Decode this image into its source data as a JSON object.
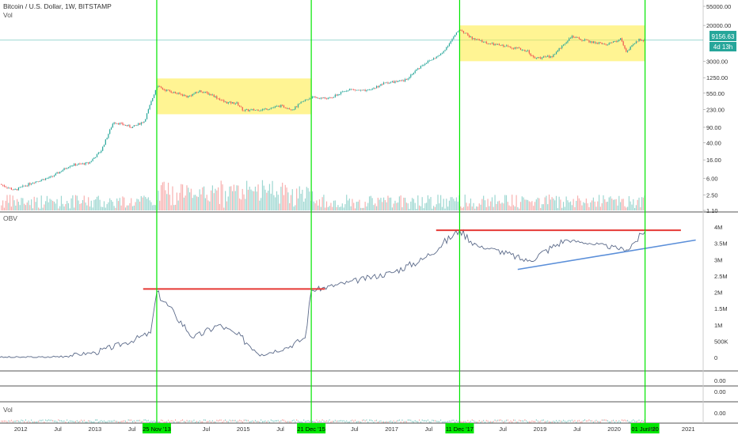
{
  "header": {
    "symbol": "Bitcoin / U.S. Dollar, 1W, BITSTAMP",
    "vol_label": "Vol"
  },
  "obv_label": "OBV",
  "bottom_vol_label": "Vol",
  "price_axis_labels": [
    "55000.00",
    "20000.00",
    "3000.00",
    "1250.00",
    "550.00",
    "230.00",
    "90.00",
    "40.00",
    "16.00",
    "6.00",
    "2.50",
    "1.10"
  ],
  "price_badge": {
    "value": "9156.63",
    "countdown": "4d 13h",
    "color": "#26a69a"
  },
  "obv_axis_labels": [
    "4M",
    "3.5M",
    "3M",
    "2.5M",
    "2M",
    "1.5M",
    "1M",
    "500K",
    "0"
  ],
  "small_pane_labels": [
    "0.00",
    "0.00"
  ],
  "vol_pane_label": "0.00",
  "time_axis": [
    "2012",
    "Jul",
    "2013",
    "Jul",
    "Jul",
    "2015",
    "Jul",
    "Jul",
    "2017",
    "Jul",
    "Jul",
    "2019",
    "Jul",
    "2020",
    "Jul",
    "2021"
  ],
  "vertical_line_tags": [
    "25 Nov '13",
    "21 Dec '15",
    "11 Dec '17",
    "01 Jun '20"
  ],
  "colors": {
    "up": "#26a69a",
    "down": "#ef5350",
    "vertical_line": "#00e600",
    "highlight": "#ffeb3b",
    "resistance": "#e53935",
    "trendline": "#5b8fd9",
    "obv": "#5c6b8a",
    "tag_bg": "#00e600"
  },
  "chart_data": {
    "type": "line",
    "price_scale": "log",
    "price_ylim": [
      1.1,
      55000
    ],
    "events": [
      "25 Nov '13",
      "21 Dec '15",
      "11 Dec '17",
      "01 Jun '20"
    ],
    "price_series": [
      [
        "2011-09",
        4.8
      ],
      [
        "2011-12",
        3.2
      ],
      [
        "2012-03",
        4.9
      ],
      [
        "2012-06",
        6.5
      ],
      [
        "2012-09",
        12
      ],
      [
        "2012-12",
        13.5
      ],
      [
        "2013-02",
        26
      ],
      [
        "2013-04",
        120
      ],
      [
        "2013-06",
        100
      ],
      [
        "2013-07",
        90
      ],
      [
        "2013-09",
        125
      ],
      [
        "2013-11",
        800
      ],
      [
        "2013-12",
        680
      ],
      [
        "2014-02",
        560
      ],
      [
        "2014-04",
        460
      ],
      [
        "2014-06",
        620
      ],
      [
        "2014-08",
        500
      ],
      [
        "2014-10",
        340
      ],
      [
        "2014-12",
        320
      ],
      [
        "2015-01",
        220
      ],
      [
        "2015-04",
        230
      ],
      [
        "2015-07",
        280
      ],
      [
        "2015-09",
        235
      ],
      [
        "2015-11",
        380
      ],
      [
        "2015-12",
        440
      ],
      [
        "2016-03",
        415
      ],
      [
        "2016-06",
        680
      ],
      [
        "2016-09",
        610
      ],
      [
        "2016-12",
        960
      ],
      [
        "2017-03",
        1050
      ],
      [
        "2017-06",
        2500
      ],
      [
        "2017-09",
        4300
      ],
      [
        "2017-12",
        16500
      ],
      [
        "2018-02",
        10000
      ],
      [
        "2018-05",
        7500
      ],
      [
        "2018-08",
        6500
      ],
      [
        "2018-11",
        5200
      ],
      [
        "2018-12",
        3500
      ],
      [
        "2019-03",
        3900
      ],
      [
        "2019-06",
        11000
      ],
      [
        "2019-09",
        8500
      ],
      [
        "2019-12",
        7200
      ],
      [
        "2020-02",
        9800
      ],
      [
        "2020-03",
        5000
      ],
      [
        "2020-05",
        9500
      ],
      [
        "2020-06",
        9156.63
      ]
    ],
    "obv_ylim": [
      0,
      4000000
    ],
    "obv_series": [
      [
        "2011-09",
        0
      ],
      [
        "2012-06",
        10000
      ],
      [
        "2013-01",
        150000
      ],
      [
        "2013-06",
        450000
      ],
      [
        "2013-10",
        750000
      ],
      [
        "2013-11",
        2000000
      ],
      [
        "2014-02",
        1300000
      ],
      [
        "2014-05",
        600000
      ],
      [
        "2014-09",
        1000000
      ],
      [
        "2014-12",
        700000
      ],
      [
        "2015-04",
        100000
      ],
      [
        "2015-08",
        300000
      ],
      [
        "2015-11",
        600000
      ],
      [
        "2015-12",
        2050000
      ],
      [
        "2016-06",
        2300000
      ],
      [
        "2017-01",
        2600000
      ],
      [
        "2017-06",
        3000000
      ],
      [
        "2017-12",
        3900000
      ],
      [
        "2018-03",
        3400000
      ],
      [
        "2018-06",
        3300000
      ],
      [
        "2018-11",
        2950000
      ],
      [
        "2019-05",
        3600000
      ],
      [
        "2019-09",
        3500000
      ],
      [
        "2020-03",
        3300000
      ],
      [
        "2020-06",
        3850000
      ]
    ],
    "resistance_lines": [
      2100000,
      3900000
    ],
    "highlight_zones": [
      {
        "from": "2013-11",
        "to": "2015-12",
        "price_low": 180,
        "price_high": 1200
      },
      {
        "from": "2017-12",
        "to": "2020-06",
        "price_low": 3000,
        "price_high": 20000
      }
    ]
  }
}
